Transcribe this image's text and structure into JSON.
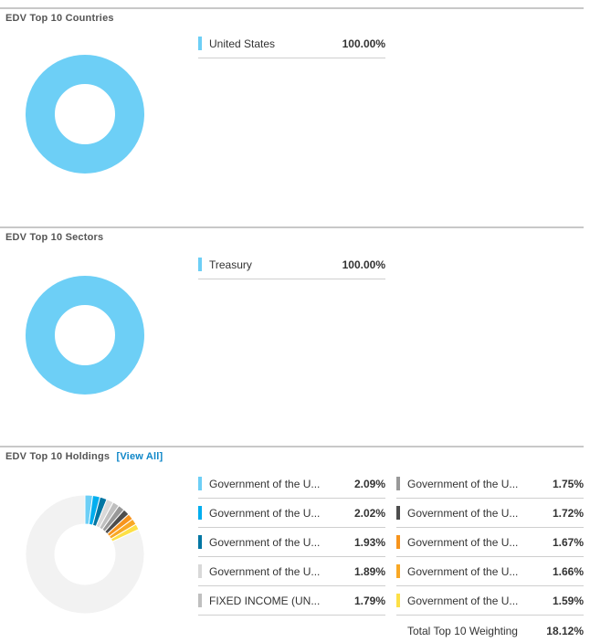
{
  "countries": {
    "title": "EDV Top 10 Countries",
    "items": [
      {
        "name": "United States",
        "value": "100.00%",
        "pct": 100.0,
        "color": "#6dcff6"
      }
    ]
  },
  "sectors": {
    "title": "EDV Top 10 Sectors",
    "items": [
      {
        "name": "Treasury",
        "value": "100.00%",
        "pct": 100.0,
        "color": "#6dcff6"
      }
    ]
  },
  "holdings": {
    "title": "EDV Top 10 Holdings",
    "view_all": "[View All]",
    "remainder_color": "#f2f2f2",
    "items": [
      {
        "name": "Government of the U...",
        "value": "2.09%",
        "pct": 2.09,
        "color": "#6dcff6"
      },
      {
        "name": "Government of the U...",
        "value": "2.02%",
        "pct": 2.02,
        "color": "#00aeef"
      },
      {
        "name": "Government of the U...",
        "value": "1.93%",
        "pct": 1.93,
        "color": "#0076a3"
      },
      {
        "name": "Government of the U...",
        "value": "1.89%",
        "pct": 1.89,
        "color": "#d9d9d9"
      },
      {
        "name": "FIXED INCOME (UN...",
        "value": "1.79%",
        "pct": 1.79,
        "color": "#bfbfbf"
      },
      {
        "name": "Government of the U...",
        "value": "1.75%",
        "pct": 1.75,
        "color": "#999999"
      },
      {
        "name": "Government of the U...",
        "value": "1.72%",
        "pct": 1.72,
        "color": "#4d4d4d"
      },
      {
        "name": "Government of the U...",
        "value": "1.67%",
        "pct": 1.67,
        "color": "#f7941d"
      },
      {
        "name": "Government of the U...",
        "value": "1.66%",
        "pct": 1.66,
        "color": "#f9a825"
      },
      {
        "name": "Government of the U...",
        "value": "1.59%",
        "pct": 1.59,
        "color": "#fde047"
      }
    ],
    "total_label": "Total Top 10 Weighting",
    "total_value": "18.12%"
  }
}
